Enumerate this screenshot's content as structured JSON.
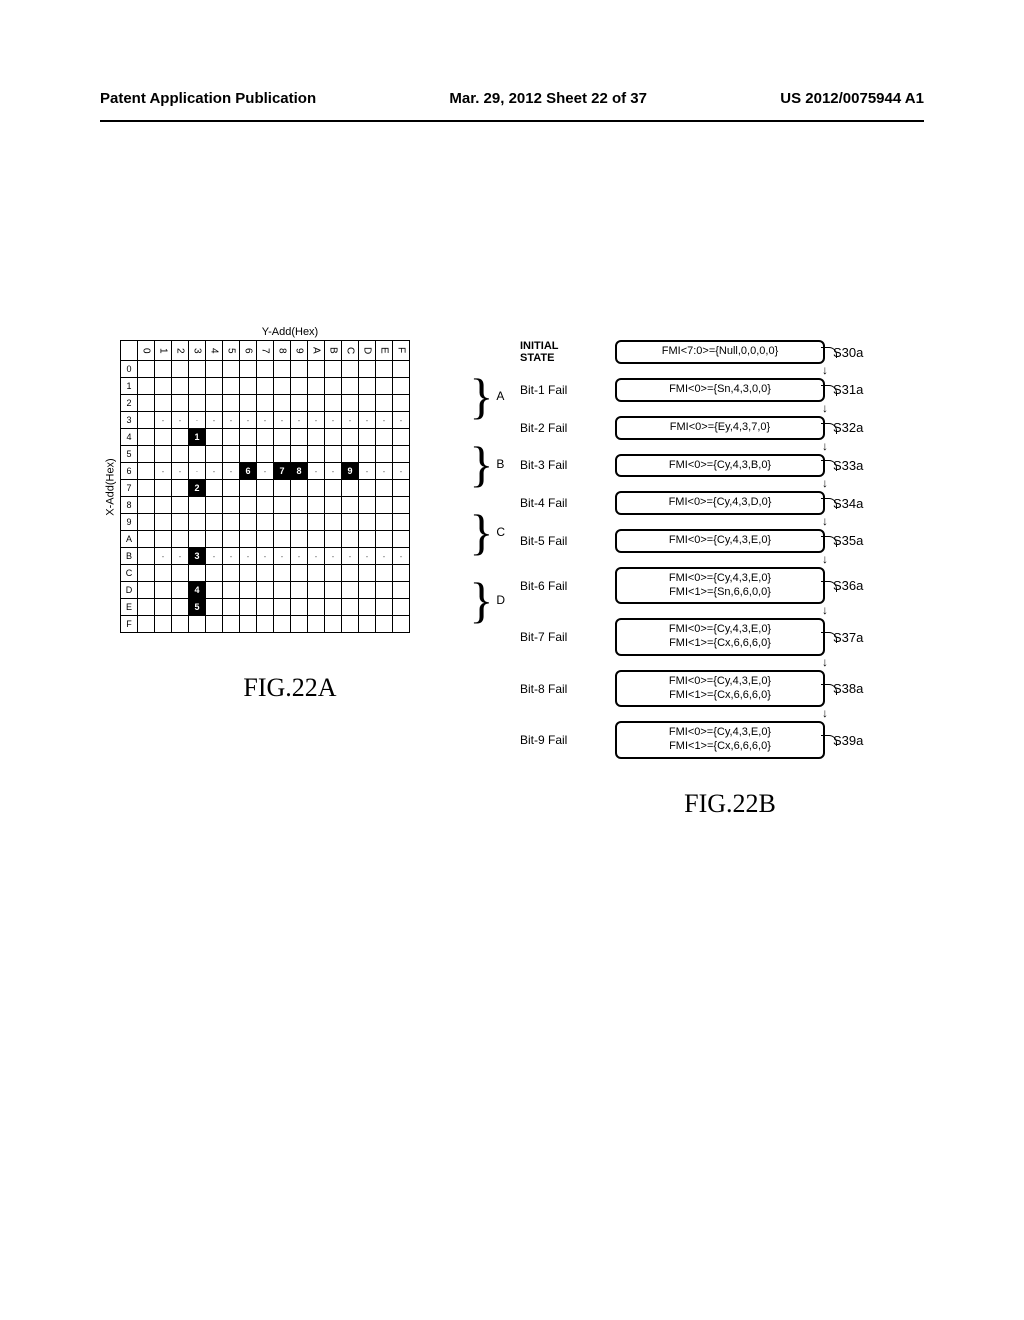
{
  "header": {
    "left": "Patent Application Publication",
    "center": "Mar. 29, 2012  Sheet 22 of 37",
    "right": "US 2012/0075944 A1"
  },
  "figA": {
    "caption": "FIG.22A",
    "yadd_label": "Y-Add(Hex)",
    "xadd_label": "X-Add(Hex)",
    "col_headers": [
      "0",
      "1",
      "2",
      "3",
      "4",
      "5",
      "6",
      "7",
      "8",
      "9",
      "A",
      "B",
      "C",
      "D",
      "E",
      "F"
    ],
    "row_headers": [
      "0",
      "1",
      "2",
      "3",
      "4",
      "5",
      "6",
      "7",
      "8",
      "9",
      "A",
      "B",
      "C",
      "D",
      "E",
      "F"
    ],
    "markers": [
      {
        "row": 4,
        "col": 3,
        "label": "1"
      },
      {
        "row": 6,
        "col": 6,
        "label": "6"
      },
      {
        "row": 6,
        "col": 8,
        "label": "7"
      },
      {
        "row": 6,
        "col": 9,
        "label": "8"
      },
      {
        "row": 6,
        "col": 12,
        "label": "9"
      },
      {
        "row": 7,
        "col": 3,
        "label": "2"
      },
      {
        "row": 11,
        "col": 3,
        "label": "3"
      },
      {
        "row": 13,
        "col": 3,
        "label": "4"
      },
      {
        "row": 14,
        "col": 3,
        "label": "5"
      }
    ],
    "dash_rows": [
      3,
      6,
      11
    ],
    "dot_cells": [
      {
        "row": 3,
        "col": 3
      },
      {
        "row": 11,
        "col": 3
      },
      {
        "row": 6,
        "col": 3
      }
    ],
    "regions": [
      "A",
      "B",
      "C",
      "D"
    ]
  },
  "figB": {
    "caption": "FIG.22B",
    "steps": [
      {
        "label": "INITIAL\nSTATE",
        "content": [
          "FMI<7:0>={Null,0,0,0,0}"
        ],
        "step": "S30a"
      },
      {
        "label": "Bit-1 Fail",
        "content": [
          "FMI<0>={Sn,4,3,0,0}"
        ],
        "step": "S31a"
      },
      {
        "label": "Bit-2 Fail",
        "content": [
          "FMI<0>={Ey,4,3,7,0}"
        ],
        "step": "S32a"
      },
      {
        "label": "Bit-3 Fail",
        "content": [
          "FMI<0>={Cy,4,3,B,0}"
        ],
        "step": "S33a"
      },
      {
        "label": "Bit-4 Fail",
        "content": [
          "FMI<0>={Cy,4,3,D,0}"
        ],
        "step": "S34a"
      },
      {
        "label": "Bit-5 Fail",
        "content": [
          "FMI<0>={Cy,4,3,E,0}"
        ],
        "step": "S35a"
      },
      {
        "label": "Bit-6 Fail",
        "content": [
          "FMI<0>={Cy,4,3,E,0}",
          "FMI<1>={Sn,6,6,0,0}"
        ],
        "step": "S36a"
      },
      {
        "label": "Bit-7 Fail",
        "content": [
          "FMI<0>={Cy,4,3,E,0}",
          "FMI<1>={Cx,6,6,6,0}"
        ],
        "step": "S37a"
      },
      {
        "label": "Bit-8 Fail",
        "content": [
          "FMI<0>={Cy,4,3,E,0}",
          "FMI<1>={Cx,6,6,6,0}"
        ],
        "step": "S38a"
      },
      {
        "label": "Bit-9 Fail",
        "content": [
          "FMI<0>={Cy,4,3,E,0}",
          "FMI<1>={Cx,6,6,6,0}"
        ],
        "step": "S39a"
      }
    ]
  }
}
